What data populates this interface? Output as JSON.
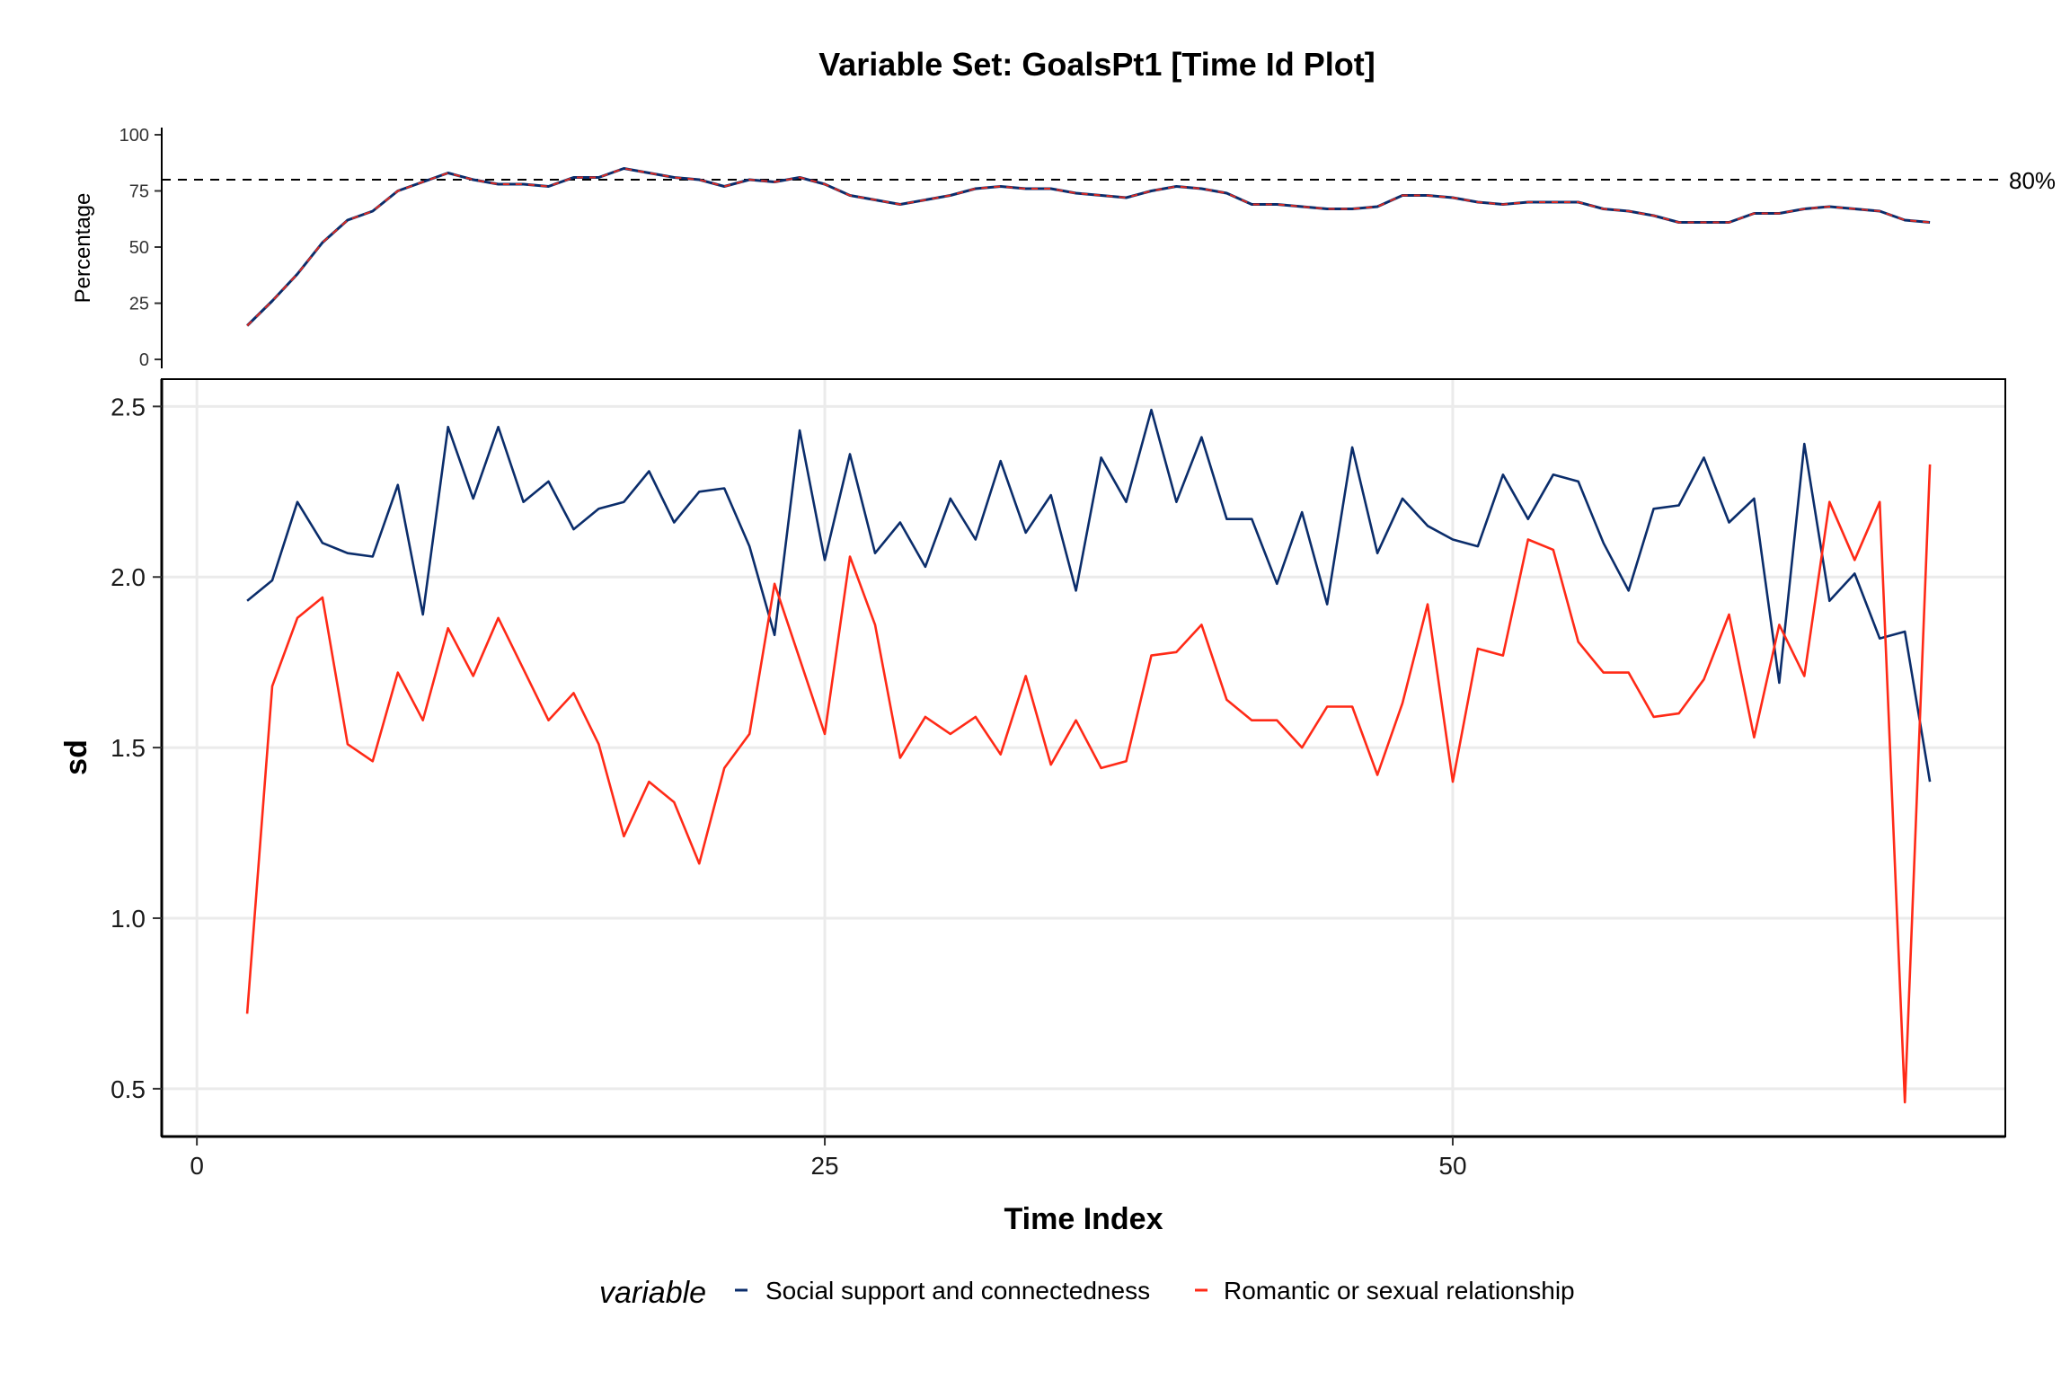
{
  "title": "Variable Set: GoalsPt1 [Time Id Plot]",
  "colors": {
    "social": "#0b2d6b",
    "romantic": "#ff2a17",
    "reference": "#000000",
    "grid": "#ebebeb"
  },
  "chart_data": [
    {
      "type": "line",
      "name": "coverage",
      "ylabel": "Percentage",
      "ylim": [
        0,
        100
      ],
      "y_ticks": [
        "0",
        "25",
        "50",
        "75",
        "100"
      ],
      "reference_line": {
        "value": 80,
        "label": "80%"
      },
      "x": [
        2,
        3,
        4,
        5,
        6,
        7,
        8,
        9,
        10,
        11,
        12,
        13,
        14,
        15,
        16,
        17,
        18,
        19,
        20,
        21,
        22,
        23,
        24,
        25,
        26,
        27,
        28,
        29,
        30,
        31,
        32,
        33,
        34,
        35,
        36,
        37,
        38,
        39,
        40,
        41,
        42,
        43,
        44,
        45,
        46,
        47,
        48,
        49,
        50,
        51,
        52,
        53,
        54,
        55,
        56,
        57,
        58,
        59,
        60,
        61,
        62,
        63,
        64,
        65,
        66,
        67,
        68,
        69
      ],
      "series": [
        {
          "values": [
            15,
            26,
            38,
            52,
            62,
            66,
            75,
            79,
            83,
            80,
            78,
            78,
            77,
            81,
            81,
            85,
            83,
            81,
            80,
            77,
            80,
            79,
            81,
            78,
            73,
            71,
            69,
            71,
            73,
            76,
            77,
            76,
            76,
            74,
            73,
            72,
            75,
            77,
            76,
            74,
            69,
            69,
            68,
            67,
            67,
            68,
            73,
            73,
            72,
            70,
            69,
            70,
            70,
            70,
            67,
            66,
            64,
            61,
            61,
            61,
            65,
            65,
            67,
            68,
            67,
            66,
            62,
            61
          ]
        }
      ]
    },
    {
      "type": "line",
      "xlabel": "Time Index",
      "ylabel": "sd",
      "xlim": [
        -1.4,
        72
      ],
      "ylim": [
        0.36,
        2.58
      ],
      "x_ticks": [
        "0",
        "25",
        "50"
      ],
      "y_ticks": [
        "0.5",
        "1.0",
        "1.5",
        "2.0",
        "2.5"
      ],
      "grid": true,
      "legend": {
        "title": "variable",
        "position": "bottom"
      },
      "x": [
        2,
        3,
        4,
        5,
        6,
        7,
        8,
        9,
        10,
        11,
        12,
        13,
        14,
        15,
        16,
        17,
        18,
        19,
        20,
        21,
        22,
        23,
        24,
        25,
        26,
        27,
        28,
        29,
        30,
        31,
        32,
        33,
        34,
        35,
        36,
        37,
        38,
        39,
        40,
        41,
        42,
        43,
        44,
        45,
        46,
        47,
        48,
        49,
        50,
        51,
        52,
        53,
        54,
        55,
        56,
        57,
        58,
        59,
        60,
        61,
        62,
        63,
        64,
        65,
        66,
        67,
        68,
        69
      ],
      "series": [
        {
          "name": "Social support and connectedness",
          "color": "#0b2d6b",
          "values": [
            1.93,
            1.99,
            2.22,
            2.1,
            2.07,
            2.06,
            2.27,
            1.89,
            2.44,
            2.23,
            2.44,
            2.22,
            2.28,
            2.14,
            2.2,
            2.22,
            2.31,
            2.16,
            2.25,
            2.26,
            2.09,
            1.83,
            2.43,
            2.05,
            2.36,
            2.07,
            2.16,
            2.03,
            2.23,
            2.11,
            2.34,
            2.13,
            2.24,
            1.96,
            2.35,
            2.22,
            2.49,
            2.22,
            2.41,
            2.17,
            2.17,
            1.98,
            2.19,
            1.92,
            2.38,
            2.07,
            2.23,
            2.15,
            2.11,
            2.09,
            2.3,
            2.17,
            2.3,
            2.28,
            2.1,
            1.96,
            2.2,
            2.21,
            2.35,
            2.16,
            2.23,
            1.69,
            2.39,
            1.93,
            2.01,
            1.82,
            1.84,
            1.4
          ]
        },
        {
          "name": "Romantic or sexual relationship",
          "color": "#ff2a17",
          "values": [
            0.72,
            1.68,
            1.88,
            1.94,
            1.51,
            1.46,
            1.72,
            1.58,
            1.85,
            1.71,
            1.88,
            1.73,
            1.58,
            1.66,
            1.51,
            1.24,
            1.4,
            1.34,
            1.16,
            1.44,
            1.54,
            1.98,
            1.76,
            1.54,
            2.06,
            1.86,
            1.47,
            1.59,
            1.54,
            1.59,
            1.48,
            1.71,
            1.45,
            1.58,
            1.44,
            1.46,
            1.77,
            1.78,
            1.86,
            1.64,
            1.58,
            1.58,
            1.5,
            1.62,
            1.62,
            1.42,
            1.63,
            1.92,
            1.4,
            1.79,
            1.77,
            2.11,
            2.08,
            1.81,
            1.72,
            1.72,
            1.59,
            1.6,
            1.7,
            1.89,
            1.53,
            1.86,
            1.71,
            2.22,
            2.05,
            2.22,
            0.46,
            2.33
          ]
        }
      ]
    }
  ]
}
